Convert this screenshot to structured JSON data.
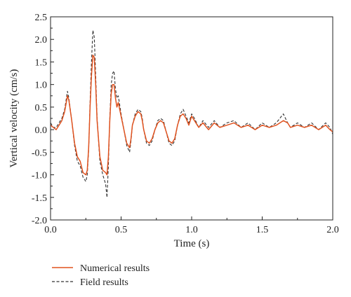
{
  "chart_data": {
    "type": "line",
    "title": "",
    "xlabel": "Time (s)",
    "ylabel": "Vertical velocity (cm/s)",
    "xlim": [
      0.0,
      2.0
    ],
    "ylim": [
      -2.0,
      2.5
    ],
    "x_ticks": [
      0.0,
      0.5,
      1.0,
      1.5,
      2.0
    ],
    "x_tick_labels": [
      "0.0",
      "0.5",
      "1.0",
      "1.5",
      "2.0"
    ],
    "y_ticks": [
      -2.0,
      -1.5,
      -1.0,
      -0.5,
      0.0,
      0.5,
      1.0,
      1.5,
      2.0,
      2.5
    ],
    "y_tick_labels": [
      "-2.0",
      "-1.5",
      "-1.0",
      "-0.5",
      "0.0",
      "0.5",
      "1.0",
      "1.5",
      "2.0",
      "2.5"
    ],
    "grid": false,
    "legend_position": "below-left",
    "series": [
      {
        "name": "Numerical results",
        "color": "#e0521f",
        "style": "solid",
        "x": [
          0.0,
          0.02,
          0.04,
          0.06,
          0.08,
          0.1,
          0.12,
          0.13,
          0.15,
          0.17,
          0.19,
          0.21,
          0.23,
          0.25,
          0.26,
          0.27,
          0.28,
          0.29,
          0.3,
          0.31,
          0.32,
          0.33,
          0.35,
          0.37,
          0.39,
          0.4,
          0.41,
          0.42,
          0.43,
          0.44,
          0.45,
          0.46,
          0.47,
          0.48,
          0.49,
          0.5,
          0.52,
          0.54,
          0.56,
          0.57,
          0.58,
          0.6,
          0.62,
          0.64,
          0.65,
          0.66,
          0.68,
          0.7,
          0.72,
          0.74,
          0.76,
          0.78,
          0.8,
          0.82,
          0.84,
          0.86,
          0.88,
          0.9,
          0.92,
          0.94,
          0.96,
          0.98,
          1.0,
          1.02,
          1.05,
          1.08,
          1.12,
          1.16,
          1.2,
          1.25,
          1.3,
          1.35,
          1.4,
          1.45,
          1.5,
          1.55,
          1.6,
          1.65,
          1.68,
          1.7,
          1.75,
          1.8,
          1.85,
          1.9,
          1.95,
          1.98,
          2.0
        ],
        "y": [
          0.1,
          0.05,
          0.0,
          0.1,
          0.2,
          0.4,
          0.75,
          0.65,
          0.2,
          -0.3,
          -0.6,
          -0.7,
          -0.95,
          -1.0,
          -0.9,
          -0.4,
          0.5,
          1.2,
          1.65,
          1.6,
          1.0,
          0.2,
          -0.6,
          -0.9,
          -0.95,
          -1.0,
          -0.6,
          0.2,
          0.8,
          1.0,
          1.0,
          0.7,
          0.5,
          0.6,
          0.45,
          0.3,
          0.0,
          -0.3,
          -0.4,
          -0.2,
          0.1,
          0.3,
          0.4,
          0.35,
          0.2,
          0.0,
          -0.25,
          -0.3,
          -0.2,
          0.0,
          0.15,
          0.2,
          0.15,
          -0.05,
          -0.25,
          -0.3,
          -0.2,
          0.1,
          0.3,
          0.35,
          0.25,
          0.1,
          0.3,
          0.2,
          0.05,
          0.15,
          0.0,
          0.15,
          0.05,
          0.1,
          0.15,
          0.05,
          0.1,
          0.0,
          0.1,
          0.05,
          0.1,
          0.2,
          0.15,
          0.05,
          0.1,
          0.05,
          0.1,
          0.0,
          0.1,
          0.0,
          -0.05
        ]
      },
      {
        "name": "Field results",
        "color": "#333333",
        "style": "dashed",
        "x": [
          0.0,
          0.02,
          0.04,
          0.06,
          0.08,
          0.1,
          0.12,
          0.13,
          0.15,
          0.17,
          0.19,
          0.21,
          0.23,
          0.25,
          0.26,
          0.27,
          0.28,
          0.29,
          0.3,
          0.31,
          0.32,
          0.33,
          0.35,
          0.37,
          0.39,
          0.4,
          0.41,
          0.42,
          0.43,
          0.44,
          0.45,
          0.46,
          0.47,
          0.48,
          0.49,
          0.5,
          0.52,
          0.54,
          0.56,
          0.57,
          0.58,
          0.6,
          0.62,
          0.64,
          0.65,
          0.66,
          0.68,
          0.7,
          0.72,
          0.74,
          0.76,
          0.78,
          0.8,
          0.82,
          0.84,
          0.86,
          0.88,
          0.9,
          0.92,
          0.94,
          0.96,
          0.98,
          1.0,
          1.02,
          1.05,
          1.08,
          1.12,
          1.16,
          1.2,
          1.25,
          1.3,
          1.35,
          1.4,
          1.45,
          1.5,
          1.55,
          1.6,
          1.65,
          1.68,
          1.7,
          1.75,
          1.8,
          1.85,
          1.9,
          1.95,
          1.98,
          2.0
        ],
        "y": [
          0.15,
          0.05,
          0.05,
          0.15,
          0.25,
          0.45,
          0.85,
          0.7,
          0.2,
          -0.35,
          -0.7,
          -0.8,
          -1.05,
          -1.15,
          -1.0,
          -0.45,
          0.6,
          1.5,
          2.2,
          2.05,
          1.2,
          0.25,
          -0.7,
          -1.0,
          -1.2,
          -1.5,
          -0.8,
          0.25,
          1.0,
          1.25,
          1.3,
          0.9,
          0.7,
          0.75,
          0.55,
          0.35,
          0.0,
          -0.35,
          -0.5,
          -0.25,
          0.1,
          0.35,
          0.45,
          0.4,
          0.25,
          0.0,
          -0.3,
          -0.35,
          -0.25,
          0.0,
          0.2,
          0.25,
          0.2,
          -0.05,
          -0.3,
          -0.35,
          -0.25,
          0.1,
          0.35,
          0.45,
          0.3,
          0.15,
          0.35,
          0.25,
          0.05,
          0.2,
          0.05,
          0.2,
          0.05,
          0.15,
          0.2,
          0.05,
          0.15,
          0.0,
          0.15,
          0.05,
          0.15,
          0.35,
          0.15,
          0.05,
          0.15,
          0.05,
          0.15,
          0.0,
          0.15,
          0.05,
          -0.1
        ]
      }
    ]
  }
}
